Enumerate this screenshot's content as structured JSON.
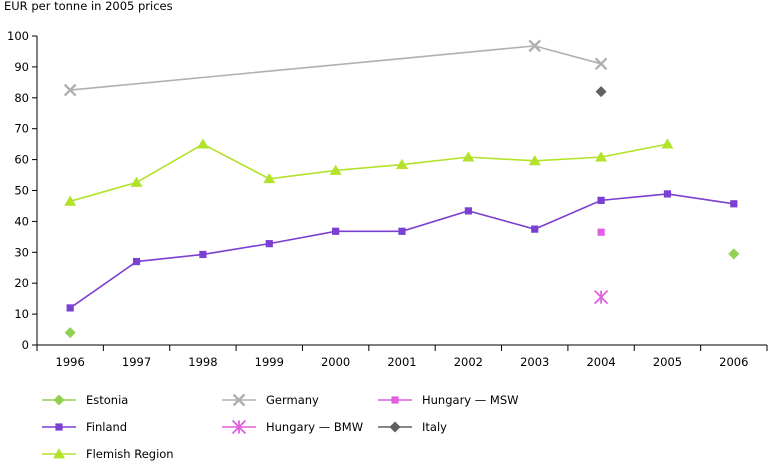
{
  "chart_data": {
    "type": "line",
    "title": "",
    "ylabel": "EUR per tonne in 2005 prices",
    "xlabel": "",
    "ylim": [
      0,
      100
    ],
    "yticks": [
      0,
      10,
      20,
      30,
      40,
      50,
      60,
      70,
      80,
      90,
      100
    ],
    "categories": [
      "1996",
      "1997",
      "1998",
      "1999",
      "2000",
      "2001",
      "2002",
      "2003",
      "2004",
      "2005",
      "2006"
    ],
    "grid": false,
    "legend_position": "bottom",
    "series": [
      {
        "name": "Estonia",
        "color": "#92d050",
        "marker": "diamond",
        "line": false,
        "values": [
          4,
          null,
          null,
          null,
          null,
          null,
          null,
          null,
          null,
          null,
          29.5
        ]
      },
      {
        "name": "Finland",
        "color": "#7b3fd3",
        "marker": "square",
        "line": true,
        "values": [
          12,
          27,
          29.3,
          32.8,
          36.8,
          36.8,
          43.4,
          37.5,
          46.8,
          48.9,
          45.7
        ]
      },
      {
        "name": "Flemish Region",
        "color": "#b2e32a",
        "marker": "triangle",
        "line": true,
        "values": [
          46.5,
          52.6,
          65,
          53.8,
          56.5,
          58.4,
          60.8,
          59.6,
          60.8,
          65,
          null
        ]
      },
      {
        "name": "Germany",
        "color": "#b0b0b0",
        "marker": "x",
        "line": true,
        "values": [
          82.5,
          null,
          null,
          null,
          null,
          null,
          null,
          96.8,
          91,
          null,
          null
        ]
      },
      {
        "name": "Hungary — BMW",
        "color": "#e05fe0",
        "marker": "star",
        "line": false,
        "values": [
          null,
          null,
          null,
          null,
          null,
          null,
          null,
          null,
          15.5,
          null,
          null
        ]
      },
      {
        "name": "Hungary — MSW",
        "color": "#e05fe0",
        "marker": "square",
        "line": false,
        "values": [
          null,
          null,
          null,
          null,
          null,
          null,
          null,
          null,
          36.5,
          null,
          null
        ]
      },
      {
        "name": "Italy",
        "color": "#606060",
        "marker": "diamond",
        "line": false,
        "values": [
          null,
          null,
          null,
          null,
          null,
          null,
          null,
          null,
          82,
          null,
          null
        ]
      }
    ],
    "legend_order": [
      "Estonia",
      "Germany",
      "Hungary — MSW",
      "Finland",
      "Hungary — BMW",
      "Italy",
      "Flemish Region"
    ]
  }
}
